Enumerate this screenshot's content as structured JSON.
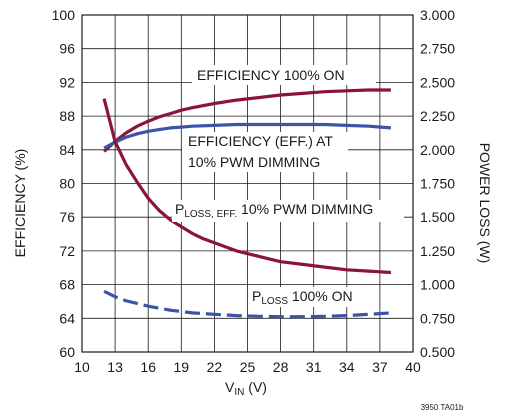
{
  "chart_data": {
    "type": "line",
    "x_label": "V_IN (V)",
    "x_label_main": "V",
    "x_label_sub": "IN",
    "x_label_unit": " (V)",
    "y_left_label": "EFFICIENCY (%)",
    "y_right_label": "POWER LOSS (W)",
    "x_range": [
      10,
      40
    ],
    "y_left_range": [
      60,
      100
    ],
    "y_right_range": [
      0.5,
      3.0
    ],
    "x_ticks": [
      "10",
      "13",
      "16",
      "19",
      "22",
      "25",
      "28",
      "31",
      "34",
      "37",
      "40"
    ],
    "y_left_ticks": [
      "60",
      "64",
      "68",
      "72",
      "76",
      "80",
      "84",
      "88",
      "92",
      "96",
      "100"
    ],
    "y_right_ticks": [
      "0.500",
      "0.750",
      "1.000",
      "1.250",
      "1.500",
      "1.750",
      "2.000",
      "2.250",
      "2.500",
      "2.750",
      "3.000"
    ],
    "grid": true,
    "colors": {
      "efficiency_100_on": "#8b1538",
      "ploss_pwm": "#8b1538",
      "efficiency_pwm": "#3b55a5",
      "ploss_100_on": "#3b55a5"
    },
    "series": [
      {
        "name": "EFFICIENCY 100% ON",
        "axis": "left",
        "style": "solid",
        "x": [
          12,
          13,
          14,
          15,
          16,
          17,
          18,
          19,
          20,
          22,
          24,
          26,
          28,
          30,
          32,
          34,
          36,
          38
        ],
        "y": [
          83.8,
          85.0,
          86.0,
          86.8,
          87.4,
          87.9,
          88.3,
          88.7,
          89.0,
          89.5,
          89.9,
          90.2,
          90.5,
          90.7,
          90.9,
          91.0,
          91.1,
          91.1
        ]
      },
      {
        "name": "EFFICIENCY (EFF.) AT 10% PWM DIMMING",
        "axis": "left",
        "style": "solid",
        "x": [
          12,
          13,
          14,
          15,
          16,
          17,
          18,
          19,
          20,
          22,
          24,
          26,
          28,
          30,
          32,
          34,
          36,
          38
        ],
        "y": [
          84.2,
          84.9,
          85.5,
          85.9,
          86.2,
          86.4,
          86.6,
          86.7,
          86.8,
          86.9,
          87.0,
          87.0,
          87.0,
          87.0,
          87.0,
          86.9,
          86.8,
          86.6
        ]
      },
      {
        "name": "P_LOSS, EFF. 10% PWM DIMMING",
        "axis": "right",
        "style": "solid",
        "x": [
          12,
          13,
          14,
          15,
          16,
          17,
          18,
          19,
          20,
          21,
          22,
          24,
          26,
          28,
          30,
          32,
          34,
          36,
          38
        ],
        "y": [
          2.38,
          2.06,
          1.89,
          1.76,
          1.64,
          1.55,
          1.48,
          1.43,
          1.38,
          1.34,
          1.31,
          1.25,
          1.21,
          1.17,
          1.15,
          1.13,
          1.11,
          1.1,
          1.09
        ]
      },
      {
        "name": "P_LOSS 100% ON",
        "axis": "right",
        "style": "dashed",
        "x": [
          12,
          13,
          14,
          15,
          16,
          18,
          20,
          22,
          24,
          26,
          28,
          30,
          32,
          34,
          36,
          38
        ],
        "y": [
          0.95,
          0.91,
          0.88,
          0.86,
          0.84,
          0.81,
          0.79,
          0.78,
          0.77,
          0.765,
          0.762,
          0.762,
          0.765,
          0.77,
          0.78,
          0.79
        ]
      }
    ],
    "annotations": {
      "eff_100_on": "EFFICIENCY 100% ON",
      "eff_pwm_line1": "EFFICIENCY (EFF.) AT",
      "eff_pwm_line2": "10% PWM DIMMING",
      "ploss_pwm_main": "P",
      "ploss_pwm_sub": "LOSS, EFF.",
      "ploss_pwm_rest": " 10% PWM DIMMING",
      "ploss_on_main": "P",
      "ploss_on_sub": "LOSS",
      "ploss_on_rest": " 100% ON"
    },
    "figure_id": "3950 TA01b"
  }
}
